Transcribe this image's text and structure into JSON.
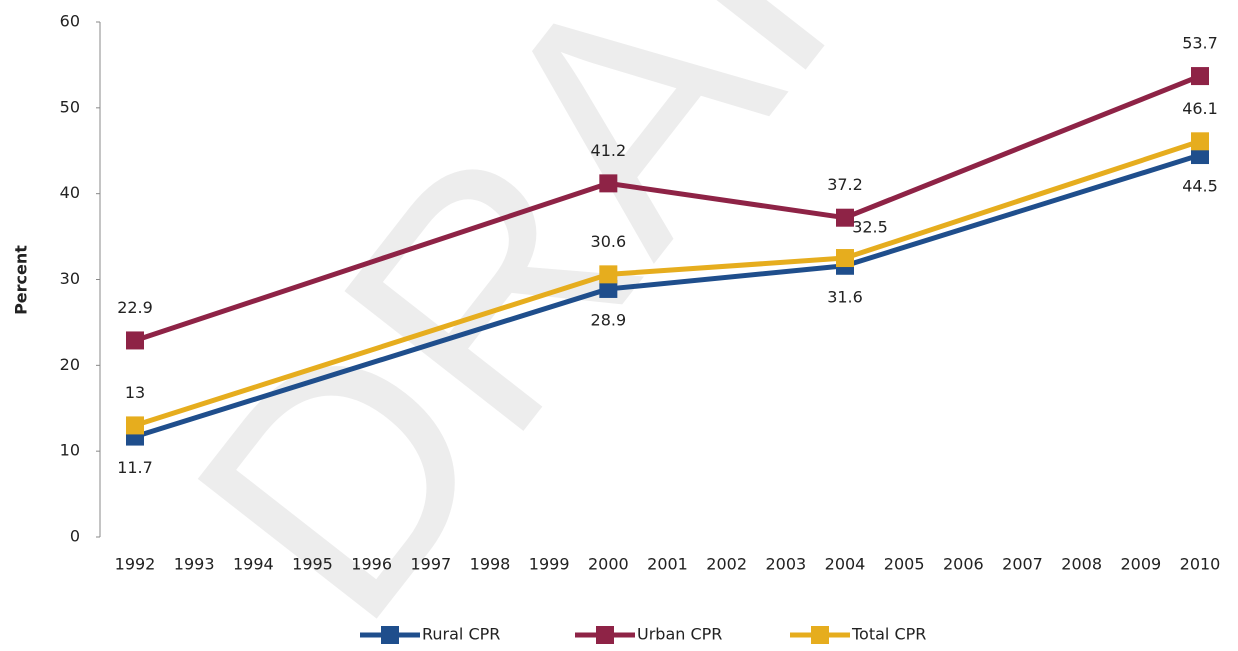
{
  "chart_data": {
    "type": "line",
    "watermark": "DRAFT",
    "y_axis_label": "Percent",
    "x": [
      1992,
      2000,
      2004,
      2010
    ],
    "xlim": [
      1992,
      2010
    ],
    "xticks": [
      1992,
      1993,
      1994,
      1995,
      1996,
      1997,
      1998,
      1999,
      2000,
      2001,
      2002,
      2003,
      2004,
      2005,
      2006,
      2007,
      2008,
      2009,
      2010
    ],
    "ylim": [
      0,
      60
    ],
    "yticks": [
      0,
      10,
      20,
      30,
      40,
      50,
      60
    ],
    "grid": false,
    "legend": "bottom",
    "series": [
      {
        "name": "Rural CPR",
        "color": "#1f4e8c",
        "values": [
          11.7,
          28.9,
          31.6,
          44.5
        ]
      },
      {
        "name": "Urban CPR",
        "color": "#8e2346",
        "values": [
          22.9,
          41.2,
          37.2,
          53.7
        ]
      },
      {
        "name": "Total CPR",
        "color": "#e6ad1e",
        "values": [
          13,
          30.6,
          32.5,
          46.1
        ]
      }
    ]
  }
}
